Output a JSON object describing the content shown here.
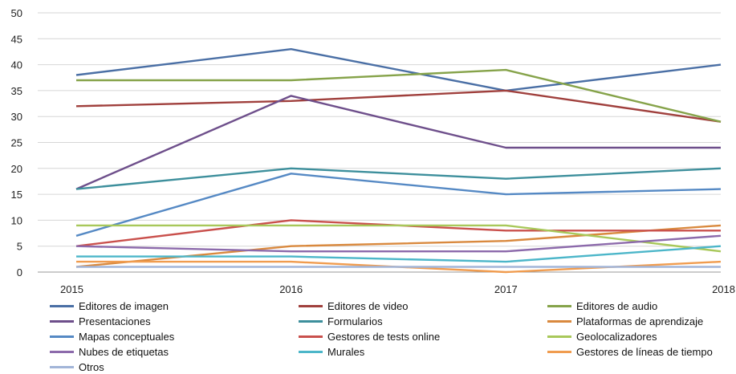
{
  "chart_data": {
    "type": "line",
    "title": "",
    "xlabel": "",
    "ylabel": "",
    "x": [
      "2015",
      "2016",
      "2017",
      "2018"
    ],
    "ylim": [
      0,
      50
    ],
    "yticks": [
      "0",
      "5",
      "10",
      "15",
      "20",
      "25",
      "30",
      "35",
      "40",
      "45",
      "50"
    ],
    "grid": true,
    "legend_position": "bottom",
    "series": [
      {
        "name": "Editores de imagen",
        "color": "#4a6fa5",
        "values": [
          38,
          43,
          35,
          40
        ]
      },
      {
        "name": "Editores de video",
        "color": "#a0403d",
        "values": [
          32,
          33,
          35,
          29
        ]
      },
      {
        "name": "Editores de audio",
        "color": "#86a34a",
        "values": [
          37,
          37,
          39,
          29
        ]
      },
      {
        "name": "Presentaciones",
        "color": "#6e4f8b",
        "values": [
          16,
          34,
          24,
          24
        ]
      },
      {
        "name": "Formularios",
        "color": "#3d8f9c",
        "values": [
          16,
          20,
          18,
          20
        ]
      },
      {
        "name": "Plataformas de aprendizaje",
        "color": "#d9893e",
        "values": [
          1,
          5,
          6,
          9
        ]
      },
      {
        "name": "Mapas  conceptuales",
        "color": "#5589c4",
        "values": [
          7,
          19,
          15,
          16
        ]
      },
      {
        "name": "Gestores de tests online",
        "color": "#c9504c",
        "values": [
          5,
          10,
          8,
          8
        ]
      },
      {
        "name": "Geolocalizadores",
        "color": "#a8c85a",
        "values": [
          9,
          9,
          9,
          4
        ]
      },
      {
        "name": "Nubes de etiquetas",
        "color": "#8c6aab",
        "values": [
          5,
          4,
          4,
          7
        ]
      },
      {
        "name": "Murales",
        "color": "#4cb6c9",
        "values": [
          3,
          3,
          2,
          5
        ]
      },
      {
        "name": "Gestores de líneas de tiempo",
        "color": "#f09c4f",
        "values": [
          2,
          2,
          0,
          2
        ]
      },
      {
        "name": "Otros",
        "color": "#a2b5d8",
        "values": [
          1,
          1,
          1,
          1
        ]
      }
    ]
  }
}
